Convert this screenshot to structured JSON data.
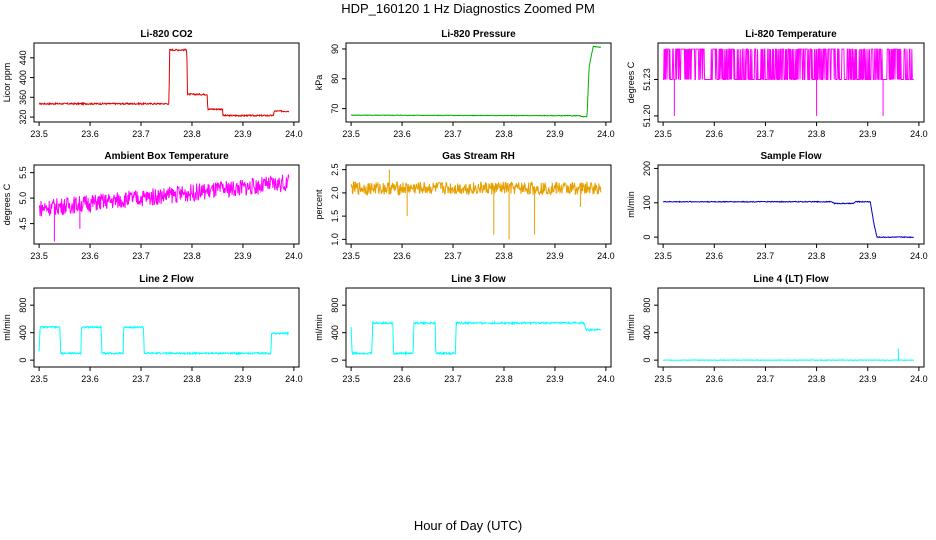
{
  "title": "HDP_160120  1 Hz Diagnostics Zoomed PM",
  "xlabel": "Hour of Day (UTC)",
  "chart_data": [
    {
      "type": "line",
      "title": "Li-820 CO2",
      "ylabel": "Licor ppm",
      "color": "#e00000",
      "xlim": [
        23.49,
        24.01
      ],
      "ylim": [
        310,
        470
      ],
      "yticks": [
        320,
        360,
        400,
        440
      ],
      "xticks": [
        23.5,
        23.6,
        23.7,
        23.8,
        23.9,
        24.0
      ],
      "x": [
        23.5,
        23.755,
        23.756,
        23.79,
        23.791,
        23.83,
        23.831,
        23.86,
        23.861,
        23.96,
        23.961,
        23.99
      ],
      "y": [
        347,
        347,
        456,
        456,
        366,
        366,
        336,
        336,
        323,
        323,
        332,
        332
      ],
      "noise": 1.5,
      "spikes": []
    },
    {
      "type": "line",
      "title": "Li-820 Pressure",
      "ylabel": "kPa",
      "color": "#00b000",
      "xlim": [
        23.49,
        24.01
      ],
      "ylim": [
        65.5,
        92
      ],
      "yticks": [
        70,
        80,
        90
      ],
      "xticks": [
        23.5,
        23.6,
        23.7,
        23.8,
        23.9,
        24.0
      ],
      "x": [
        23.5,
        23.95,
        23.951,
        23.963,
        23.967,
        23.975,
        23.99
      ],
      "y": [
        67.8,
        67.6,
        67.3,
        67.3,
        84.0,
        90.8,
        90.6
      ],
      "noise": 0.1,
      "spikes": []
    },
    {
      "type": "line",
      "title": "Li-820 Temperature",
      "ylabel": "degrees C",
      "color": "#ff00ff",
      "xlim": [
        23.49,
        24.01
      ],
      "ylim": [
        51.195,
        51.26
      ],
      "yticks": [
        51.2,
        51.23
      ],
      "extra_ytick_label": "51.2 51.23",
      "xticks": [
        23.5,
        23.6,
        23.7,
        23.8,
        23.9,
        24.0
      ],
      "x": [
        23.5,
        23.99
      ],
      "y": [
        51.23,
        51.23
      ],
      "noise": 0,
      "spikes": [
        [
          23.522,
          51.2
        ],
        [
          23.8,
          51.2
        ],
        [
          23.93,
          51.2
        ]
      ]
    },
    {
      "type": "line",
      "title": "Ambient Box Temperature",
      "ylabel": "degrees C",
      "color": "#ff00ff",
      "xlim": [
        23.49,
        24.01
      ],
      "ylim": [
        4.1,
        5.65
      ],
      "yticks": [
        4.5,
        5.0,
        5.5
      ],
      "xticks": [
        23.5,
        23.6,
        23.7,
        23.8,
        23.9,
        24.0
      ],
      "x": [
        23.5,
        23.99
      ],
      "y": [
        4.8,
        5.3
      ],
      "noise": 0.17,
      "spikes": [
        [
          23.53,
          4.15
        ],
        [
          23.58,
          4.4
        ]
      ]
    },
    {
      "type": "line",
      "title": "Gas Stream RH",
      "ylabel": "percent",
      "color": "#e8a000",
      "xlim": [
        23.49,
        24.01
      ],
      "ylim": [
        0.9,
        2.6
      ],
      "yticks": [
        1.0,
        1.5,
        2.0,
        2.5
      ],
      "xticks": [
        23.5,
        23.6,
        23.7,
        23.8,
        23.9,
        24.0
      ],
      "x": [
        23.5,
        23.99
      ],
      "y": [
        2.1,
        2.1
      ],
      "noise": 0.14,
      "spikes": [
        [
          23.575,
          2.5
        ],
        [
          23.61,
          1.5
        ],
        [
          23.78,
          1.1
        ],
        [
          23.81,
          1.0
        ],
        [
          23.86,
          1.1
        ],
        [
          23.95,
          1.7
        ]
      ]
    },
    {
      "type": "line",
      "title": "Sample Flow",
      "ylabel": "ml/min",
      "color": "#0000c0",
      "xlim": [
        23.49,
        24.01
      ],
      "ylim": [
        -20,
        210
      ],
      "yticks": [
        0,
        100,
        200
      ],
      "xticks": [
        23.5,
        23.6,
        23.7,
        23.8,
        23.9,
        24.0
      ],
      "x": [
        23.5,
        23.83,
        23.835,
        23.872,
        23.876,
        23.905,
        23.912,
        23.918,
        23.99
      ],
      "y": [
        103,
        103,
        98,
        98,
        103,
        103,
        40,
        0,
        0
      ],
      "noise": 1.2,
      "spikes": []
    },
    {
      "type": "line",
      "title": "Line 2 Flow",
      "ylabel": "ml/min",
      "color": "#00ffff",
      "xlim": [
        23.49,
        24.01
      ],
      "ylim": [
        -100,
        1050
      ],
      "yticks": [
        0,
        400,
        800
      ],
      "xticks": [
        23.5,
        23.6,
        23.7,
        23.8,
        23.9,
        24.0
      ],
      "x": [
        23.5,
        23.502,
        23.541,
        23.542,
        23.582,
        23.583,
        23.622,
        23.623,
        23.665,
        23.666,
        23.705,
        23.706,
        23.955,
        23.956,
        23.99
      ],
      "y": [
        130,
        480,
        480,
        100,
        100,
        480,
        480,
        100,
        100,
        480,
        480,
        100,
        100,
        390,
        390
      ],
      "noise": 12,
      "spikes": []
    },
    {
      "type": "line",
      "title": "Line 3 Flow",
      "ylabel": "ml/min",
      "color": "#00ffff",
      "xlim": [
        23.49,
        24.01
      ],
      "ylim": [
        -100,
        1050
      ],
      "yticks": [
        0,
        400,
        800
      ],
      "xticks": [
        23.5,
        23.6,
        23.7,
        23.8,
        23.9,
        24.0
      ],
      "x": [
        23.5,
        23.502,
        23.541,
        23.542,
        23.582,
        23.583,
        23.622,
        23.623,
        23.665,
        23.666,
        23.705,
        23.706,
        23.958,
        23.96,
        23.99
      ],
      "y": [
        480,
        100,
        100,
        540,
        540,
        100,
        100,
        540,
        540,
        100,
        100,
        540,
        540,
        440,
        440
      ],
      "noise": 14,
      "spikes": []
    },
    {
      "type": "line",
      "title": "Line 4 (LT) Flow",
      "ylabel": "ml/min",
      "color": "#00ffff",
      "xlim": [
        23.49,
        24.01
      ],
      "ylim": [
        -100,
        1050
      ],
      "yticks": [
        0,
        400,
        800
      ],
      "xticks": [
        23.5,
        23.6,
        23.7,
        23.8,
        23.9,
        24.0
      ],
      "x": [
        23.5,
        23.99
      ],
      "y": [
        0,
        0
      ],
      "noise": 4,
      "spikes": [
        [
          23.96,
          170
        ]
      ]
    }
  ]
}
